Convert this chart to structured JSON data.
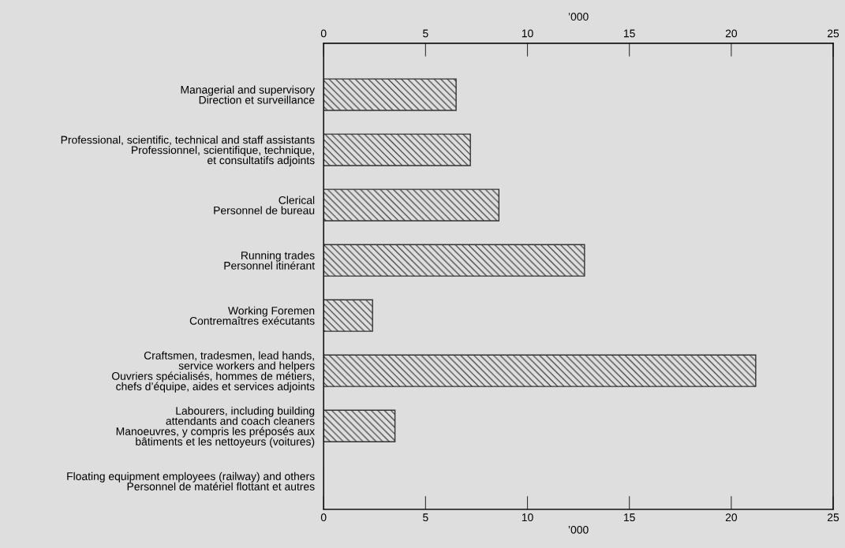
{
  "chart_data": {
    "type": "bar",
    "orientation": "horizontal",
    "categories": [
      "Managerial and supervisory\nDirection et surveillance",
      "Professional, scientific, technical and staff assistants\nProfessionnel, scientifique, technique,\net consultatifs adjoints",
      "Clerical\nPersonnel de bureau",
      "Running trades\nPersonnel itinérant",
      "Working Foremen\nContremaîtres exécutants",
      "Craftsmen, tradesmen, lead hands,\nservice workers and helpers\nOuvriers spécialisés, hommes de métiers,\nchefs d’équipe, aides et services adjoints",
      "Labourers, including building\nattendants and coach cleaners\nManoeuvres, y compris les préposés aux\nbâtiments et les nettoyeurs (voitures)",
      "Floating equipment employees (railway) and others\nPersonnel de matériel flottant et autres"
    ],
    "values": [
      6.5,
      7.2,
      8.6,
      12.8,
      2.4,
      21.2,
      3.5,
      0
    ],
    "color": "#333333",
    "xlabel": "’000",
    "x2label": "’000",
    "xlim": [
      0,
      25
    ],
    "xticks": [
      0,
      5,
      10,
      15,
      20,
      25
    ],
    "x2lim": [
      0,
      25
    ],
    "x2ticks": [
      0,
      5,
      10,
      15,
      20,
      25
    ],
    "grid": false,
    "legend": false
  }
}
